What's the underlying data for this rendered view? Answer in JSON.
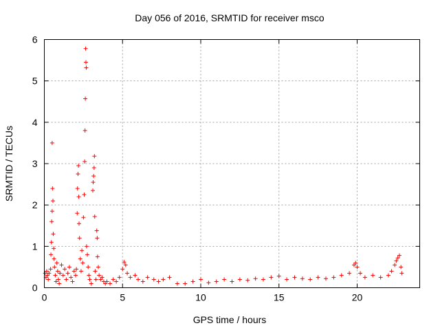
{
  "chart_data": {
    "type": "scatter",
    "title": "Day 056 of 2016, SRMTID for receiver msco",
    "xlabel": "GPS time / hours",
    "ylabel": "SRMTID / TECUs",
    "xlim": [
      0,
      24
    ],
    "ylim": [
      0,
      6
    ],
    "xticks": [
      0,
      5,
      10,
      15,
      20
    ],
    "yticks": [
      0,
      1,
      2,
      3,
      4,
      5,
      6
    ],
    "xtick_labels": [
      "0",
      "5",
      "10",
      "15",
      "20"
    ],
    "ytick_labels": [
      "0",
      "1",
      "2",
      "3",
      "4",
      "5",
      "6"
    ],
    "grid": true,
    "marker": "plus",
    "colors": {
      "series": "#ff0000",
      "grid": "#a0a0a0",
      "axes": "#000000"
    },
    "series": [
      {
        "name": "SRMTID",
        "points": [
          [
            0.05,
            0.35
          ],
          [
            0.1,
            0.25
          ],
          [
            0.15,
            0.4
          ],
          [
            0.2,
            0.3
          ],
          [
            0.25,
            0.2
          ],
          [
            0.3,
            0.35
          ],
          [
            0.4,
            0.45
          ],
          [
            0.42,
            0.8
          ],
          [
            0.45,
            1.1
          ],
          [
            0.47,
            1.6
          ],
          [
            0.5,
            1.85
          ],
          [
            0.5,
            3.5
          ],
          [
            0.52,
            2.4
          ],
          [
            0.55,
            2.1
          ],
          [
            0.57,
            1.3
          ],
          [
            0.6,
            0.95
          ],
          [
            0.62,
            0.7
          ],
          [
            0.65,
            0.5
          ],
          [
            0.7,
            0.3
          ],
          [
            0.75,
            0.15
          ],
          [
            0.8,
            0.6
          ],
          [
            0.85,
            0.4
          ],
          [
            0.9,
            0.2
          ],
          [
            0.95,
            0.1
          ],
          [
            1.0,
            0.35
          ],
          [
            1.1,
            0.55
          ],
          [
            1.2,
            0.3
          ],
          [
            1.3,
            0.45
          ],
          [
            1.4,
            0.2
          ],
          [
            1.5,
            0.35
          ],
          [
            1.6,
            0.5
          ],
          [
            1.7,
            0.25
          ],
          [
            1.8,
            0.15
          ],
          [
            1.9,
            0.4
          ],
          [
            2.0,
            0.3
          ],
          [
            2.05,
            0.45
          ],
          [
            2.1,
            1.8
          ],
          [
            2.12,
            2.4
          ],
          [
            2.15,
            2.75
          ],
          [
            2.18,
            2.95
          ],
          [
            2.2,
            2.2
          ],
          [
            2.22,
            1.55
          ],
          [
            2.25,
            1.2
          ],
          [
            2.3,
            0.7
          ],
          [
            2.35,
            0.4
          ],
          [
            2.4,
            0.9
          ],
          [
            2.45,
            0.6
          ],
          [
            2.5,
            1.7
          ],
          [
            2.55,
            2.25
          ],
          [
            2.58,
            3.05
          ],
          [
            2.6,
            3.8
          ],
          [
            2.62,
            4.57
          ],
          [
            2.64,
            5.78
          ],
          [
            2.66,
            5.45
          ],
          [
            2.68,
            5.32
          ],
          [
            2.7,
            1.0
          ],
          [
            2.75,
            0.8
          ],
          [
            2.8,
            0.5
          ],
          [
            2.85,
            0.3
          ],
          [
            2.9,
            0.2
          ],
          [
            3.0,
            0.1
          ],
          [
            3.1,
            2.35
          ],
          [
            3.12,
            2.55
          ],
          [
            3.15,
            2.7
          ],
          [
            3.18,
            2.9
          ],
          [
            3.2,
            3.18
          ],
          [
            3.22,
            1.72
          ],
          [
            3.25,
            0.4
          ],
          [
            3.3,
            0.2
          ],
          [
            3.35,
            1.38
          ],
          [
            3.38,
            1.2
          ],
          [
            3.4,
            0.75
          ],
          [
            3.45,
            0.5
          ],
          [
            3.5,
            0.3
          ],
          [
            3.6,
            0.2
          ],
          [
            3.7,
            0.25
          ],
          [
            3.8,
            0.15
          ],
          [
            3.9,
            0.1
          ],
          [
            4.0,
            0.15
          ],
          [
            4.2,
            0.1
          ],
          [
            4.4,
            0.2
          ],
          [
            4.6,
            0.15
          ],
          [
            4.8,
            0.25
          ],
          [
            5.0,
            0.45
          ],
          [
            5.1,
            0.62
          ],
          [
            5.2,
            0.55
          ],
          [
            5.3,
            0.35
          ],
          [
            5.5,
            0.25
          ],
          [
            5.8,
            0.3
          ],
          [
            6.0,
            0.2
          ],
          [
            6.3,
            0.15
          ],
          [
            6.6,
            0.25
          ],
          [
            7.0,
            0.2
          ],
          [
            7.3,
            0.15
          ],
          [
            7.6,
            0.2
          ],
          [
            8.0,
            0.25
          ],
          [
            8.5,
            0.1
          ],
          [
            9.0,
            0.1
          ],
          [
            9.5,
            0.15
          ],
          [
            10.0,
            0.2
          ],
          [
            10.5,
            0.12
          ],
          [
            11.0,
            0.15
          ],
          [
            11.5,
            0.2
          ],
          [
            12.0,
            0.15
          ],
          [
            12.5,
            0.2
          ],
          [
            13.0,
            0.18
          ],
          [
            13.5,
            0.22
          ],
          [
            14.0,
            0.2
          ],
          [
            14.5,
            0.25
          ],
          [
            15.0,
            0.28
          ],
          [
            15.5,
            0.2
          ],
          [
            16.0,
            0.25
          ],
          [
            16.5,
            0.22
          ],
          [
            17.0,
            0.2
          ],
          [
            17.5,
            0.25
          ],
          [
            18.0,
            0.22
          ],
          [
            18.5,
            0.25
          ],
          [
            19.0,
            0.3
          ],
          [
            19.5,
            0.35
          ],
          [
            19.8,
            0.55
          ],
          [
            19.9,
            0.6
          ],
          [
            20.0,
            0.5
          ],
          [
            20.2,
            0.35
          ],
          [
            20.5,
            0.25
          ],
          [
            21.0,
            0.3
          ],
          [
            21.5,
            0.25
          ],
          [
            22.0,
            0.3
          ],
          [
            22.2,
            0.4
          ],
          [
            22.4,
            0.55
          ],
          [
            22.5,
            0.65
          ],
          [
            22.6,
            0.72
          ],
          [
            22.7,
            0.78
          ],
          [
            22.8,
            0.5
          ],
          [
            22.85,
            0.35
          ]
        ]
      }
    ]
  }
}
